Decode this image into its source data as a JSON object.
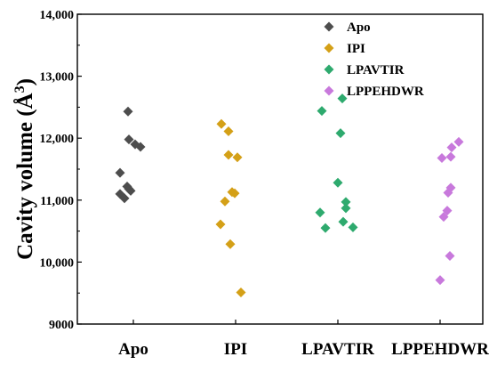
{
  "chart_data": {
    "type": "scatter",
    "title": "",
    "xlabel": "",
    "ylabel": "Cavity volume (Å",
    "ylabel_superscript": "3",
    "ylabel_close": ")",
    "categories": [
      "Apo",
      "IPI",
      "LPAVTIR",
      "LPPEHDWR"
    ],
    "ylim": [
      9000,
      14000
    ],
    "yticks": [
      9000,
      10000,
      11000,
      12000,
      13000,
      14000
    ],
    "ytick_labels": [
      "9000",
      "10,000",
      "11,000",
      "12,000",
      "13,000",
      "14,000"
    ],
    "grid": false,
    "legend_position": "top-right",
    "marker": "diamond",
    "series": [
      {
        "name": "Apo",
        "color": "#4d4d4d",
        "points": [
          {
            "x": -0.15,
            "y": 11440
          },
          {
            "x": -0.15,
            "y": 11100
          },
          {
            "x": -0.1,
            "y": 11030
          },
          {
            "x": -0.07,
            "y": 11220
          },
          {
            "x": -0.05,
            "y": 11180
          },
          {
            "x": -0.03,
            "y": 11150
          },
          {
            "x": -0.06,
            "y": 12430
          },
          {
            "x": -0.05,
            "y": 11980
          },
          {
            "x": 0.02,
            "y": 11900
          },
          {
            "x": 0.08,
            "y": 11860
          }
        ]
      },
      {
        "name": "IPI",
        "color": "#d4a017",
        "points": [
          {
            "x": -0.16,
            "y": 12230
          },
          {
            "x": -0.08,
            "y": 12110
          },
          {
            "x": -0.08,
            "y": 11730
          },
          {
            "x": 0.02,
            "y": 11690
          },
          {
            "x": -0.04,
            "y": 11130
          },
          {
            "x": -0.01,
            "y": 11110
          },
          {
            "x": -0.12,
            "y": 10980
          },
          {
            "x": -0.17,
            "y": 10610
          },
          {
            "x": -0.06,
            "y": 10290
          },
          {
            "x": 0.06,
            "y": 9510
          }
        ]
      },
      {
        "name": "LPAVTIR",
        "color": "#2eaa6e",
        "points": [
          {
            "x": 0.05,
            "y": 12640
          },
          {
            "x": -0.18,
            "y": 12440
          },
          {
            "x": 0.03,
            "y": 12080
          },
          {
            "x": 0.0,
            "y": 11280
          },
          {
            "x": 0.09,
            "y": 10970
          },
          {
            "x": 0.09,
            "y": 10870
          },
          {
            "x": -0.2,
            "y": 10800
          },
          {
            "x": 0.06,
            "y": 10650
          },
          {
            "x": -0.14,
            "y": 10550
          },
          {
            "x": 0.17,
            "y": 10560
          }
        ]
      },
      {
        "name": "LPPEHDWR",
        "color": "#c879dc",
        "points": [
          {
            "x": 0.21,
            "y": 11940
          },
          {
            "x": 0.13,
            "y": 11850
          },
          {
            "x": 0.02,
            "y": 11680
          },
          {
            "x": 0.12,
            "y": 11700
          },
          {
            "x": 0.12,
            "y": 11200
          },
          {
            "x": 0.09,
            "y": 11120
          },
          {
            "x": 0.08,
            "y": 10830
          },
          {
            "x": 0.04,
            "y": 10730
          },
          {
            "x": 0.11,
            "y": 10100
          },
          {
            "x": 0.0,
            "y": 9710
          }
        ]
      }
    ]
  }
}
